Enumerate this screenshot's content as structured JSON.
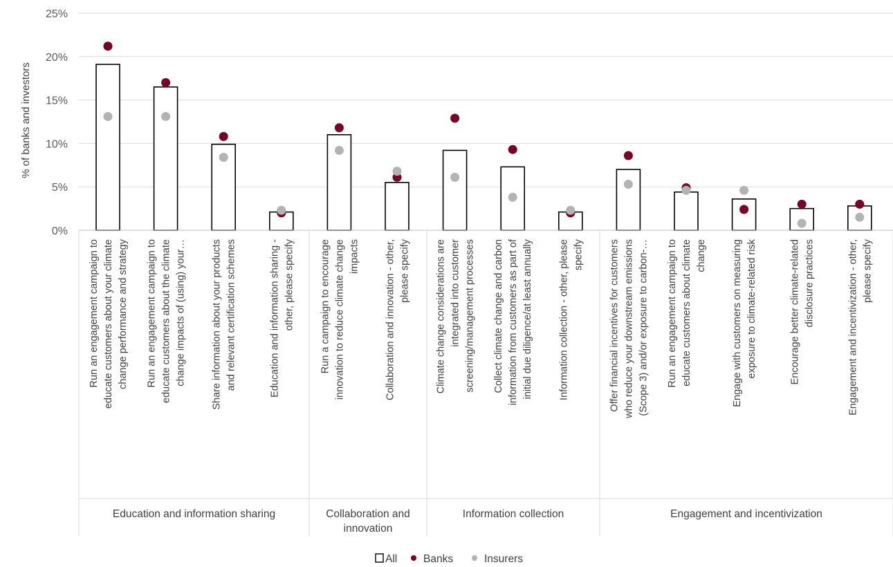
{
  "chart_data": {
    "type": "bar",
    "ylabel": "% of banks and investors",
    "ylim": [
      0,
      25
    ],
    "yticks": [
      "0%",
      "5%",
      "10%",
      "15%",
      "20%",
      "25%"
    ],
    "grid": true,
    "legend_position": "bottom",
    "categories": [
      [
        "Run an engagement campaign to",
        "educate customers about your climate",
        "change performance and strategy"
      ],
      [
        "Run an engagement campaign to",
        "educate customers about the climate",
        "change impacts of (using) your…"
      ],
      [
        "Share information about your products",
        "and relevant certification schemes"
      ],
      [
        "Education and information sharing -",
        "other, please specify"
      ],
      [
        "Run a campaign to encourage",
        "innovation to reduce climate change",
        "impacts"
      ],
      [
        "Collaboration and innovation - other,",
        "please specify"
      ],
      [
        "Climate change considerations are",
        "integrated into customer",
        "screening/management processes"
      ],
      [
        "Collect climate change and carbon",
        "information from customers as part of",
        "initial due diligence/at least annually"
      ],
      [
        "Information collection - other, please",
        "specify"
      ],
      [
        "Offer financial incentives for customers",
        "who reduce your downstream emissions",
        "(Scope 3) and/or exposure to carbon-…"
      ],
      [
        "Run an engagement campaign to",
        "educate customers about climate",
        "change"
      ],
      [
        "Engage with customers on measuring",
        "exposure to climate-related risk"
      ],
      [
        "Encourage better climate-related",
        "disclosure practices"
      ],
      [
        "Engagement and incentivization - other,",
        "please specify"
      ]
    ],
    "groups": [
      {
        "label": [
          "Education and information sharing"
        ],
        "start": 0,
        "end": 3
      },
      {
        "label": [
          "Collaboration and",
          "innovation"
        ],
        "start": 4,
        "end": 5
      },
      {
        "label": [
          "Information collection"
        ],
        "start": 6,
        "end": 8
      },
      {
        "label": [
          "Engagement and incentivization"
        ],
        "start": 9,
        "end": 13
      }
    ],
    "series": [
      {
        "name": "All",
        "type": "bar",
        "color": "#ffffff",
        "stroke": "#000000",
        "values": [
          19.1,
          16.5,
          9.9,
          2.1,
          11.0,
          5.5,
          9.2,
          7.3,
          2.1,
          7.0,
          4.4,
          3.6,
          2.5,
          2.8
        ]
      },
      {
        "name": "Banks",
        "type": "scatter",
        "color": "#7a0026",
        "values": [
          21.2,
          17.0,
          10.8,
          2.0,
          11.8,
          6.1,
          12.9,
          9.3,
          2.0,
          8.6,
          4.9,
          2.4,
          3.0,
          3.0
        ]
      },
      {
        "name": "Insurers",
        "type": "scatter",
        "color": "#b3b3b3",
        "values": [
          13.1,
          13.1,
          8.4,
          2.3,
          9.2,
          6.8,
          6.1,
          3.8,
          2.3,
          5.3,
          4.6,
          4.6,
          0.8,
          1.5
        ]
      }
    ]
  }
}
